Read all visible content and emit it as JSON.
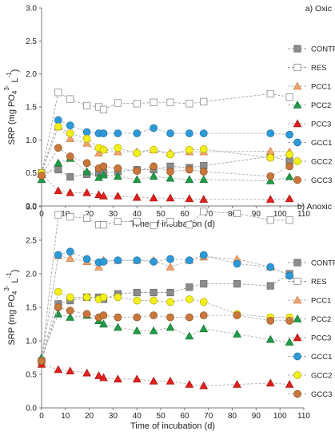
{
  "figure": {
    "title": ""
  },
  "styles": {
    "CONTROL": {
      "marker": "square",
      "fill": "#8c8c8c",
      "stroke": "#6e6e6e",
      "line": "#a0a0a0"
    },
    "RES": {
      "marker": "square",
      "fill": "#ffffff",
      "stroke": "#8c8c8c",
      "line": "#a0a0a0"
    },
    "PCC1": {
      "marker": "triangle",
      "fill": "#f2a46a",
      "stroke": "#c97a45",
      "line": "#b0b0b0"
    },
    "PCC2": {
      "marker": "triangle",
      "fill": "#1f9c45",
      "stroke": "#147233",
      "line": "#b0b0b0"
    },
    "PCC3": {
      "marker": "triangle",
      "fill": "#e0201b",
      "stroke": "#a51510",
      "line": "#b0b0b0"
    },
    "GCC1": {
      "marker": "circle",
      "fill": "#2d9ad8",
      "stroke": "#1c6fa3",
      "line": "#b0b0b0"
    },
    "GCC2": {
      "marker": "circle",
      "fill": "#f3ef1a",
      "stroke": "#b5ad00",
      "line": "#b0b0b0"
    },
    "GCC3": {
      "marker": "circle",
      "fill": "#c9773b",
      "stroke": "#8f4f22",
      "line": "#b0b0b0"
    }
  },
  "chart_data": [
    {
      "type": "scatter",
      "panel_label": "a) Oxic",
      "xlabel": "Time of incubation (d)",
      "ylabel": "SRP (mg PO43- L-1)",
      "ylabel_parts": [
        "SRP (mg PO",
        "4",
        "3-",
        " L",
        "-1",
        ")"
      ],
      "xlim": [
        0,
        110
      ],
      "ylim": [
        0,
        3.0
      ],
      "xticks": [
        0,
        10,
        20,
        30,
        40,
        50,
        60,
        70,
        80,
        90,
        100,
        110
      ],
      "yticks": [
        0,
        0.5,
        1.0,
        1.5,
        2.0,
        2.5,
        3.0
      ],
      "ytick_labels": [
        "0.0",
        "0.5",
        "1.0",
        "1.5",
        "2.0",
        "2.5",
        "3.0"
      ],
      "legend_position": "right",
      "series": [
        {
          "name": "CONTROL",
          "x": [
            0,
            7,
            12,
            19,
            24,
            26,
            32,
            40,
            47,
            54,
            62,
            68,
            96,
            104
          ],
          "y": [
            0.5,
            0.55,
            0.44,
            0.48,
            0.5,
            0.5,
            0.52,
            0.55,
            0.55,
            0.6,
            0.58,
            0.61,
            0.75,
            0.68
          ]
        },
        {
          "name": "RES",
          "x": [
            0,
            7,
            12,
            19,
            24,
            26,
            32,
            40,
            47,
            54,
            62,
            68,
            96,
            104
          ],
          "y": [
            0.5,
            1.72,
            1.62,
            1.52,
            1.5,
            1.46,
            1.56,
            1.55,
            1.57,
            1.57,
            1.55,
            1.58,
            1.7,
            1.65
          ]
        },
        {
          "name": "PCC1",
          "x": [
            0,
            7,
            12,
            19,
            24,
            26,
            32,
            40,
            47,
            54,
            62,
            68,
            96,
            104
          ],
          "y": [
            0.5,
            1.2,
            1.02,
            0.95,
            0.8,
            0.85,
            0.82,
            0.82,
            0.85,
            0.8,
            0.82,
            0.82,
            0.83,
            0.82
          ]
        },
        {
          "name": "PCC2",
          "x": [
            0,
            7,
            12,
            19,
            24,
            26,
            32,
            40,
            47,
            54,
            62,
            68,
            96,
            104
          ],
          "y": [
            0.4,
            0.65,
            0.72,
            0.52,
            0.43,
            0.47,
            0.45,
            0.4,
            0.45,
            0.42,
            0.4,
            0.4,
            0.38,
            0.44
          ]
        },
        {
          "name": "PCC3",
          "x": [
            0,
            7,
            12,
            19,
            24,
            26,
            32,
            40,
            47,
            54,
            62,
            68,
            96,
            104
          ],
          "y": [
            0.48,
            0.23,
            0.2,
            0.2,
            0.17,
            0.15,
            0.15,
            0.13,
            0.12,
            0.12,
            0.11,
            0.1,
            0.1,
            0.11
          ]
        },
        {
          "name": "GCC1",
          "x": [
            0,
            7,
            12,
            19,
            24,
            26,
            32,
            40,
            47,
            54,
            62,
            68,
            96,
            104
          ],
          "y": [
            0.5,
            1.3,
            1.22,
            1.12,
            1.1,
            1.1,
            1.1,
            1.1,
            1.18,
            1.1,
            1.1,
            1.1,
            1.1,
            1.08
          ]
        },
        {
          "name": "GCC2",
          "x": [
            0,
            7,
            12,
            19,
            24,
            26,
            32,
            40,
            47,
            54,
            62,
            68,
            96,
            104
          ],
          "y": [
            0.5,
            1.2,
            1.1,
            1.02,
            0.88,
            0.85,
            0.88,
            0.8,
            0.85,
            0.78,
            0.85,
            0.86,
            0.73,
            0.78
          ]
        },
        {
          "name": "GCC3",
          "x": [
            0,
            7,
            12,
            19,
            24,
            26,
            32,
            40,
            47,
            54,
            62,
            68,
            96,
            104
          ],
          "y": [
            0.46,
            0.88,
            0.75,
            0.65,
            0.57,
            0.6,
            0.57,
            0.53,
            0.6,
            0.52,
            0.55,
            0.52,
            0.45,
            0.6
          ]
        }
      ]
    },
    {
      "type": "scatter",
      "panel_label": "b) Anoxic",
      "xlabel": "Time of incubation (d)",
      "ylabel": "SRP (mg PO43- L-1)",
      "ylabel_parts": [
        "SRP (mg PO",
        "4",
        "3-",
        " L",
        "-1",
        ")"
      ],
      "xlim": [
        0,
        110
      ],
      "ylim": [
        0,
        3.0
      ],
      "xticks": [
        0,
        10,
        20,
        30,
        40,
        50,
        60,
        70,
        80,
        90,
        100,
        110
      ],
      "yticks": [
        0,
        0.5,
        1.0,
        1.5,
        2.0,
        2.5,
        3.0
      ],
      "ytick_labels": [
        "0.0",
        "0.5",
        "1.0",
        "1.5",
        "2.0",
        "2.5",
        "3.0"
      ],
      "legend_position": "right",
      "series": [
        {
          "name": "CONTROL",
          "x": [
            0,
            7,
            12,
            19,
            24,
            26,
            32,
            40,
            47,
            54,
            62,
            68,
            82,
            96,
            104
          ],
          "y": [
            0.7,
            1.55,
            1.6,
            1.65,
            1.65,
            1.62,
            1.7,
            1.72,
            1.72,
            1.72,
            1.8,
            1.85,
            1.85,
            1.82,
            2.0
          ]
        },
        {
          "name": "RES",
          "x": [
            0,
            7,
            12,
            19,
            24,
            26,
            32,
            40,
            47,
            54,
            62,
            68,
            82,
            96,
            104
          ],
          "y": [
            0.7,
            2.88,
            2.85,
            2.83,
            2.73,
            2.73,
            2.78,
            2.78,
            2.72,
            2.78,
            2.73,
            2.93,
            2.9,
            2.8,
            2.8
          ]
        },
        {
          "name": "PCC1",
          "x": [
            0,
            7,
            12,
            19,
            24,
            26,
            32,
            40,
            47,
            54,
            62,
            68,
            82,
            96,
            104
          ],
          "y": [
            0.7,
            2.27,
            2.23,
            2.18,
            2.1,
            2.2,
            2.2,
            2.2,
            2.2,
            2.1,
            2.2,
            2.25,
            2.22,
            2.1,
            1.98
          ]
        },
        {
          "name": "PCC2",
          "x": [
            0,
            7,
            12,
            19,
            24,
            26,
            32,
            40,
            47,
            54,
            62,
            68,
            82,
            96,
            104
          ],
          "y": [
            0.75,
            1.4,
            1.35,
            1.38,
            1.3,
            1.25,
            1.2,
            1.15,
            1.15,
            1.2,
            1.07,
            1.18,
            1.1,
            1.02,
            0.98
          ]
        },
        {
          "name": "PCC3",
          "x": [
            0,
            7,
            12,
            19,
            24,
            26,
            32,
            40,
            47,
            54,
            62,
            68,
            82,
            96,
            104
          ],
          "y": [
            0.65,
            0.57,
            0.55,
            0.52,
            0.48,
            0.45,
            0.43,
            0.43,
            0.4,
            0.4,
            0.35,
            0.33,
            0.35,
            0.37,
            0.35
          ]
        },
        {
          "name": "GCC1",
          "x": [
            0,
            7,
            12,
            19,
            24,
            26,
            32,
            40,
            47,
            54,
            62,
            68,
            82,
            96,
            104
          ],
          "y": [
            0.7,
            2.28,
            2.33,
            2.22,
            2.17,
            2.18,
            2.2,
            2.2,
            2.18,
            2.22,
            2.2,
            2.28,
            2.15,
            2.1,
            1.97
          ]
        },
        {
          "name": "GCC2",
          "x": [
            0,
            7,
            12,
            19,
            24,
            26,
            32,
            40,
            47,
            54,
            62,
            68,
            82,
            96,
            104
          ],
          "y": [
            0.7,
            1.73,
            1.65,
            1.65,
            1.62,
            1.65,
            1.65,
            1.6,
            1.6,
            1.58,
            1.62,
            1.58,
            1.4,
            1.35,
            1.35
          ]
        },
        {
          "name": "GCC3",
          "x": [
            0,
            7,
            12,
            19,
            24,
            26,
            32,
            40,
            47,
            54,
            62,
            68,
            82,
            96,
            104
          ],
          "y": [
            0.7,
            1.5,
            1.45,
            1.4,
            1.35,
            1.38,
            1.35,
            1.35,
            1.38,
            1.35,
            1.35,
            1.38,
            1.38,
            1.3,
            1.3
          ]
        }
      ]
    }
  ]
}
